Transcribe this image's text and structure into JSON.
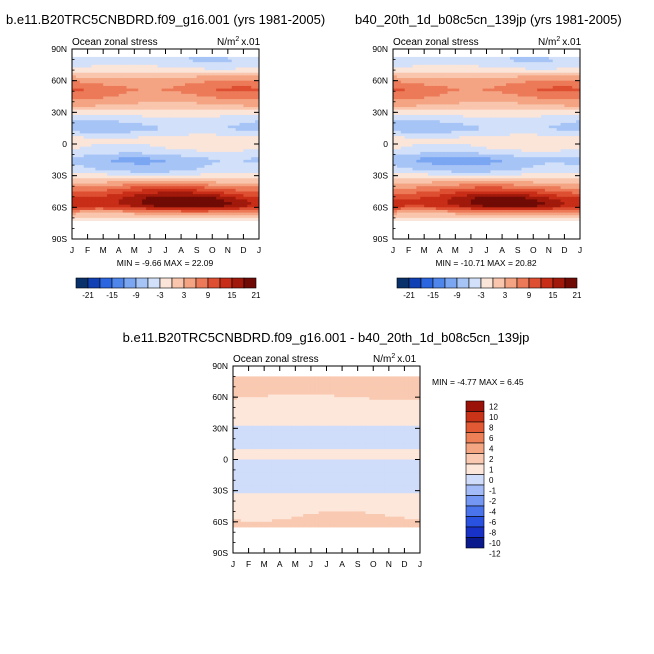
{
  "colors": {
    "top_palette": [
      "#08306b",
      "#1140b5",
      "#2b66e0",
      "#4f86ec",
      "#7aa6f2",
      "#a7c4f6",
      "#d2e1f9",
      "#fbe4d8",
      "#f9c6ad",
      "#f4a482",
      "#ec7a58",
      "#de4f32",
      "#c82d17",
      "#a0190b",
      "#700a05"
    ],
    "diff_palette": [
      "#0a1a8c",
      "#1832c8",
      "#2a52e0",
      "#4a74ec",
      "#7397f2",
      "#a3bbf7",
      "#cfdcfa",
      "#fde6da",
      "#f9c9b1",
      "#f4a683",
      "#ee8058",
      "#e25a34",
      "#c93418",
      "#9a1208"
    ]
  },
  "chart_data": [
    {
      "type": "heatmap",
      "title": "b.e11.B20TRC5CNBDRD.f09_g16.001 (yrs 1981-2005)",
      "left_label": "Ocean zonal stress",
      "units_label": "N/m",
      "units_sup": "2",
      "units_scale": "x.01",
      "x_ticks": [
        "J",
        "F",
        "M",
        "A",
        "M",
        "J",
        "J",
        "A",
        "S",
        "O",
        "N",
        "D",
        "J"
      ],
      "y_ticks": [
        "90N",
        "60N",
        "30N",
        "0",
        "30S",
        "60S",
        "90S"
      ],
      "ylim": [
        -90,
        90
      ],
      "stats": "MIN = -9.66 MAX = 22.09",
      "colorbar": {
        "orientation": "horizontal",
        "labels": [
          "-21",
          "-15",
          "-9",
          "-3",
          "3",
          "9",
          "15",
          "21"
        ],
        "bins": 15
      },
      "field_profile": [
        {
          "lat": 78,
          "value": -5
        },
        {
          "lat": 70,
          "value": -2
        },
        {
          "lat": 62,
          "value": 4
        },
        {
          "lat": 52,
          "value": 8
        },
        {
          "lat": 45,
          "value": 6
        },
        {
          "lat": 35,
          "value": 2
        },
        {
          "lat": 25,
          "value": -4
        },
        {
          "lat": 15,
          "value": -7
        },
        {
          "lat": 5,
          "value": -2
        },
        {
          "lat": -5,
          "value": -3
        },
        {
          "lat": -15,
          "value": -8
        },
        {
          "lat": -25,
          "value": -6
        },
        {
          "lat": -35,
          "value": 2
        },
        {
          "lat": -42,
          "value": 9
        },
        {
          "lat": -52,
          "value": 17
        },
        {
          "lat": -58,
          "value": 18
        },
        {
          "lat": -65,
          "value": 5
        },
        {
          "lat": -70,
          "value": -1
        }
      ]
    },
    {
      "type": "heatmap",
      "title": "b40_20th_1d_b08c5cn_139jp (yrs 1981-2005)",
      "left_label": "Ocean zonal stress",
      "units_label": "N/m",
      "units_sup": "2",
      "units_scale": "x.01",
      "x_ticks": [
        "J",
        "F",
        "M",
        "A",
        "M",
        "J",
        "J",
        "A",
        "S",
        "O",
        "N",
        "D",
        "J"
      ],
      "y_ticks": [
        "90N",
        "60N",
        "30N",
        "0",
        "30S",
        "60S",
        "90S"
      ],
      "ylim": [
        -90,
        90
      ],
      "stats": "MIN = -10.71 MAX = 20.82",
      "colorbar": {
        "orientation": "horizontal",
        "labels": [
          "-21",
          "-15",
          "-9",
          "-3",
          "3",
          "9",
          "15",
          "21"
        ],
        "bins": 15
      },
      "field_profile": [
        {
          "lat": 78,
          "value": -5
        },
        {
          "lat": 70,
          "value": -2
        },
        {
          "lat": 62,
          "value": 4
        },
        {
          "lat": 52,
          "value": 8
        },
        {
          "lat": 45,
          "value": 6
        },
        {
          "lat": 35,
          "value": 2
        },
        {
          "lat": 25,
          "value": -4
        },
        {
          "lat": 15,
          "value": -7
        },
        {
          "lat": 5,
          "value": -2
        },
        {
          "lat": -5,
          "value": -3
        },
        {
          "lat": -15,
          "value": -9
        },
        {
          "lat": -25,
          "value": -6
        },
        {
          "lat": -35,
          "value": 2
        },
        {
          "lat": -42,
          "value": 8
        },
        {
          "lat": -52,
          "value": 16
        },
        {
          "lat": -58,
          "value": 17
        },
        {
          "lat": -65,
          "value": 5
        },
        {
          "lat": -70,
          "value": -1
        }
      ]
    },
    {
      "type": "heatmap",
      "title": "b.e11.B20TRC5CNBDRD.f09_g16.001 - b40_20th_1d_b08c5cn_139jp",
      "left_label": "Ocean zonal stress",
      "units_label": "N/m",
      "units_sup": "2",
      "units_scale": "x.01",
      "x_ticks": [
        "J",
        "F",
        "M",
        "A",
        "M",
        "J",
        "J",
        "A",
        "S",
        "O",
        "N",
        "D",
        "J"
      ],
      "y_ticks": [
        "90N",
        "60N",
        "30N",
        "0",
        "30S",
        "60S",
        "90S"
      ],
      "ylim": [
        -90,
        90
      ],
      "stats": "MIN = -4.77 MAX =  6.45",
      "colorbar": {
        "orientation": "vertical",
        "labels": [
          "12",
          "10",
          "8",
          "6",
          "4",
          "2",
          "1",
          "0",
          "-1",
          "-2",
          "-4",
          "-6",
          "-8",
          "-10",
          "-12"
        ],
        "bins": 14
      },
      "field_profile": [
        {
          "lat": 75,
          "value": 1.5
        },
        {
          "lat": 65,
          "value": 1.5
        },
        {
          "lat": 55,
          "value": 0.5
        },
        {
          "lat": 45,
          "value": 0.5
        },
        {
          "lat": 35,
          "value": 0.3
        },
        {
          "lat": 25,
          "value": -0.5
        },
        {
          "lat": 15,
          "value": -0.6
        },
        {
          "lat": 5,
          "value": 0.5
        },
        {
          "lat": -5,
          "value": -0.4
        },
        {
          "lat": -15,
          "value": -0.5
        },
        {
          "lat": -25,
          "value": -0.5
        },
        {
          "lat": -35,
          "value": 0.3
        },
        {
          "lat": -45,
          "value": 0.6
        },
        {
          "lat": -55,
          "value": 1.0
        },
        {
          "lat": -62,
          "value": 1.5
        }
      ]
    }
  ]
}
